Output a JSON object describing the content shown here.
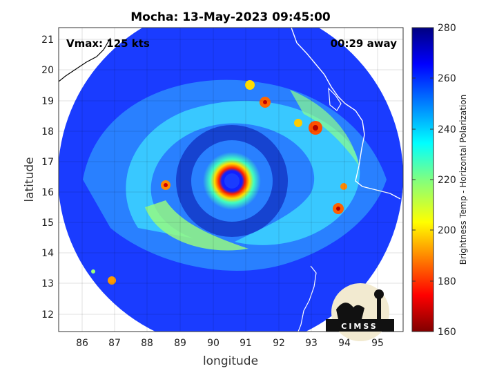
{
  "chart_data": {
    "type": "heatmap",
    "title": "Mocha: 13-May-2023 09:45:00",
    "xlabel": "longitude",
    "ylabel": "latitude",
    "xlim": [
      85.3,
      95.8
    ],
    "ylim": [
      11.4,
      21.4
    ],
    "x_ticks": [
      86,
      87,
      88,
      89,
      90,
      91,
      92,
      93,
      94,
      95
    ],
    "y_ticks": [
      12,
      13,
      14,
      15,
      16,
      17,
      18,
      19,
      20,
      21
    ],
    "grid": true,
    "colorbar": {
      "label": "Brightness Temp - Horizontal Polarization",
      "range": [
        160,
        280
      ],
      "ticks": [
        160,
        180,
        200,
        220,
        240,
        260,
        280
      ],
      "colormap": "jet"
    },
    "annotations": {
      "left": "Vmax: 125 kts",
      "right": "00:29 away"
    },
    "storm_center": {
      "lon": 90.4,
      "lat": 16.4
    },
    "logo": "CIMSS"
  }
}
